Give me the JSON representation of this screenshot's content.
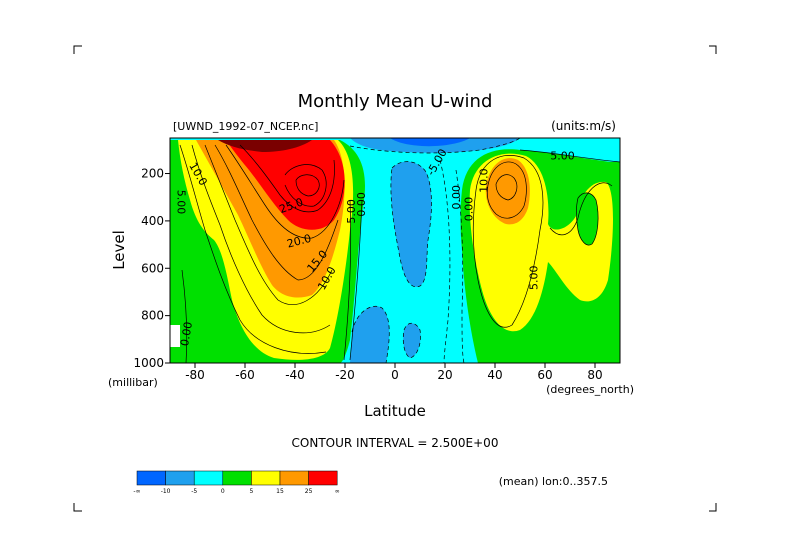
{
  "chart_data": {
    "type": "heatmap",
    "title": "Monthly Mean U-wind",
    "dataset": "[UWND_1992-07_NCEP.nc]",
    "units": "(units:m/s)",
    "xlabel": "Latitude",
    "x_units": "(degrees_north)",
    "ylabel": "Level",
    "y_units": "(millibar)",
    "xlim": [
      -90,
      90
    ],
    "ylim": [
      1000,
      50
    ],
    "x_ticks": [
      "-80",
      "-60",
      "-40",
      "-20",
      "0",
      "20",
      "40",
      "60",
      "80"
    ],
    "x_tick_values": [
      -80,
      -60,
      -40,
      -20,
      0,
      20,
      40,
      60,
      80
    ],
    "y_ticks": [
      "200",
      "400",
      "600",
      "800",
      "1000"
    ],
    "y_tick_values": [
      200,
      400,
      600,
      800,
      1000
    ],
    "contour_interval_text": "CONTOUR INTERVAL = 2.500E+00",
    "mean_note": "(mean) lon:0..357.5",
    "colorbar": {
      "colors": [
        "#0066ff",
        "#1fa0ee",
        "#00ffff",
        "#00e000",
        "#ffff00",
        "#ff9900",
        "#ff0000"
      ],
      "labels": [
        "-∞",
        "-10",
        "-5",
        "0",
        "5",
        "15",
        "25",
        "∞"
      ]
    },
    "contour_labels": [
      {
        "text": "10.0",
        "x": -80,
        "y": 210,
        "rotate": 60
      },
      {
        "text": "5.00",
        "x": -87,
        "y": 320,
        "rotate": 90
      },
      {
        "text": "0.00",
        "x": -82,
        "y": 880,
        "rotate": -80
      },
      {
        "text": "25.0",
        "x": -41,
        "y": 350,
        "rotate": -20
      },
      {
        "text": "20.0",
        "x": -38,
        "y": 500,
        "rotate": -15
      },
      {
        "text": "15.0",
        "x": -30,
        "y": 580,
        "rotate": -50
      },
      {
        "text": "10.0",
        "x": -26,
        "y": 650,
        "rotate": -60
      },
      {
        "text": "5.00",
        "x": -16,
        "y": 360,
        "rotate": -90
      },
      {
        "text": "0.00",
        "x": -12,
        "y": 330,
        "rotate": -90
      },
      {
        "text": "-5.00",
        "x": 18,
        "y": 160,
        "rotate": -60
      },
      {
        "text": "0.00",
        "x": 26,
        "y": 300,
        "rotate": -90
      },
      {
        "text": "0.00",
        "x": 31,
        "y": 350,
        "rotate": -90
      },
      {
        "text": "10.0",
        "x": 37,
        "y": 230,
        "rotate": -90
      },
      {
        "text": "5.00",
        "x": 67,
        "y": 140,
        "rotate": 0
      },
      {
        "text": "5.00",
        "x": 57,
        "y": 640,
        "rotate": -90
      }
    ],
    "grid": false,
    "legend": "bottom-left"
  }
}
